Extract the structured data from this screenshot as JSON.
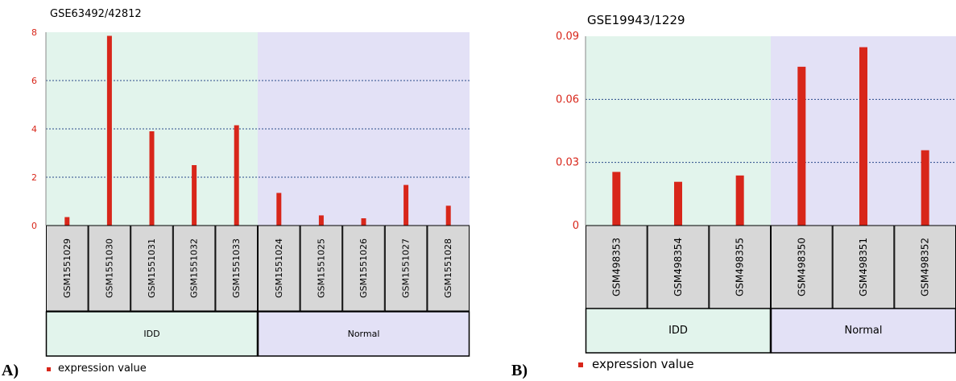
{
  "colors": {
    "bar": "#d8261a",
    "idd_bg": "#e2f4ec",
    "normal_bg": "#e3e1f6",
    "cell_bg": "#d7d7d7",
    "tick_text": "#d8261a",
    "grid": "#2a4a8a"
  },
  "legend": {
    "label": "expression value"
  },
  "chart_data": [
    {
      "type": "bar",
      "title": "GSE63492/42812",
      "panel_label": "A)",
      "categories": [
        "GSM1551029",
        "GSM1551030",
        "GSM1551031",
        "GSM1551032",
        "GSM1551033",
        "GSM1551024",
        "GSM1551025",
        "GSM1551026",
        "GSM1551027",
        "GSM1551028"
      ],
      "values": [
        0.35,
        7.85,
        3.9,
        2.5,
        4.15,
        1.35,
        0.42,
        0.3,
        1.68,
        0.82
      ],
      "groups": [
        {
          "label": "IDD",
          "start": 0,
          "count": 5
        },
        {
          "label": "Normal",
          "start": 5,
          "count": 5
        }
      ],
      "yticks": [
        "0",
        "2",
        "4",
        "6",
        "8"
      ],
      "ylim": [
        0,
        8
      ],
      "grid": true,
      "series": [
        {
          "name": "expression value"
        }
      ]
    },
    {
      "type": "bar",
      "title": "GSE19943/1229",
      "panel_label": "B)",
      "categories": [
        "GSM498353",
        "GSM498354",
        "GSM498355",
        "GSM498350",
        "GSM498351",
        "GSM498352"
      ],
      "values": [
        0.0255,
        0.0208,
        0.0238,
        0.0755,
        0.0848,
        0.0358
      ],
      "groups": [
        {
          "label": "IDD",
          "start": 0,
          "count": 3
        },
        {
          "label": "Normal",
          "start": 3,
          "count": 3
        }
      ],
      "yticks": [
        "0",
        "0.03",
        "0.06",
        "0.09"
      ],
      "ylim": [
        0,
        0.09
      ],
      "grid": true,
      "series": [
        {
          "name": "expression value"
        }
      ]
    }
  ]
}
